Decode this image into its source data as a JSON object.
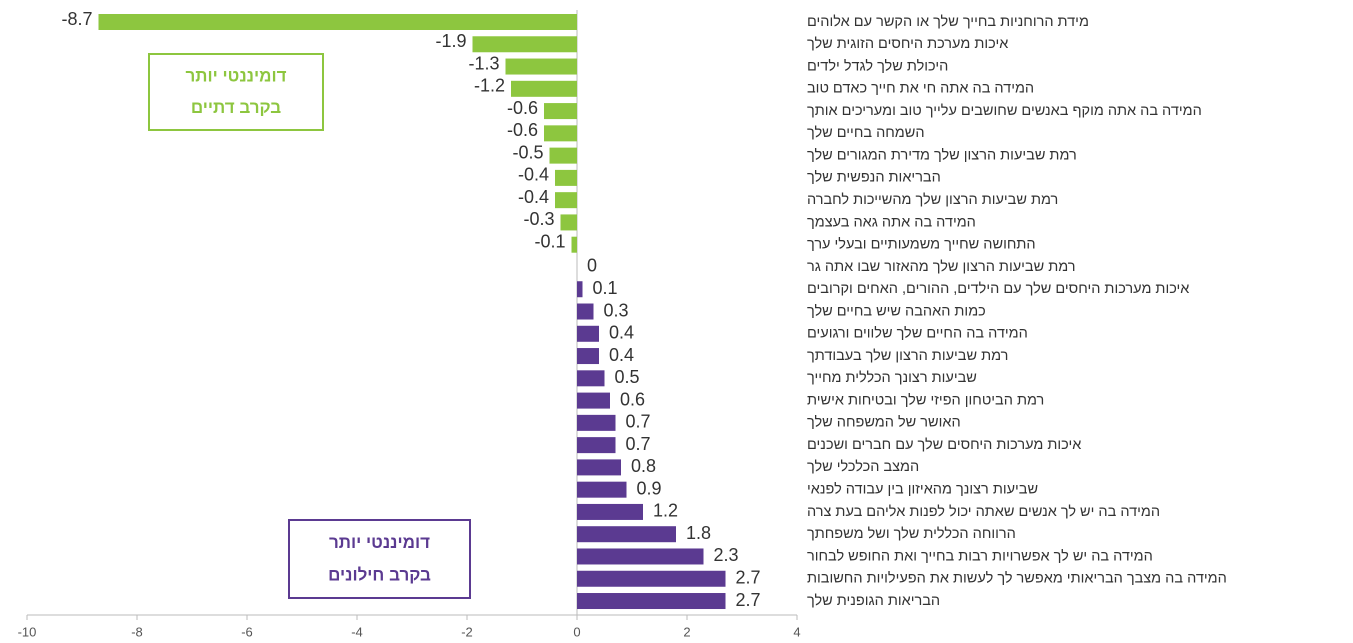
{
  "chart_data": {
    "type": "hbar",
    "categories": [
      "מידת הרוחניות בחייך שלך או הקשר עם אלוהים",
      "איכות מערכת היחסים הזוגית שלך",
      "היכולת שלך לגדל ילדים",
      "המידה בה אתה חי את חייך כאדם טוב",
      "המידה בה אתה מוקף באנשים שחושבים עלייך טוב ומעריכים אותך",
      "השמחה בחיים שלך",
      "רמת שביעות הרצון שלך מדירת המגורים שלך",
      "הבריאות הנפשית שלך",
      "רמת שביעות הרצון שלך מהשייכות לחברה",
      "המידה בה אתה גאה בעצמך",
      "התחושה שחייך משמעותיים ובעלי ערך",
      "רמת שביעות הרצון שלך מהאזור שבו אתה גר",
      "איכות מערכות היחסים שלך עם הילדים, ההורים, האחים וקרובים",
      "כמות האהבה שיש בחיים שלך",
      "המידה בה החיים שלך שלווים ורגועים",
      "רמת שביעות הרצון שלך בעבודתך",
      "שביעות רצונך הכללית מחייך",
      "רמת הביטחון הפיזי שלך ובטיחות אישית",
      "האושר של המשפחה שלך",
      "איכות מערכות היחסים שלך עם חברים ושכנים",
      "המצב הכלכלי שלך",
      "שביעות רצונך מהאיזון בין עבודה לפנאי",
      "המידה בה יש לך אנשים שאתה יכול לפנות אליהם בעת צרה",
      "הרווחה הכללית שלך ושל משפחתך",
      "המידה בה יש לך אפשרויות רבות בחייך ואת החופש לבחור",
      "המידה בה מצבך הבריאותי מאפשר לך לעשות את הפעילויות החשובות",
      "הבריאות הגופנית שלך"
    ],
    "values": [
      -8.7,
      -1.9,
      -1.3,
      -1.2,
      -0.6,
      -0.6,
      -0.5,
      -0.4,
      -0.4,
      -0.3,
      -0.1,
      0,
      0.1,
      0.3,
      0.4,
      0.4,
      0.5,
      0.6,
      0.7,
      0.7,
      0.8,
      0.9,
      1.2,
      1.8,
      2.3,
      2.7,
      2.7
    ],
    "color_negative": "#8dc63f",
    "color_positive": "#5b3a91",
    "xlim": [
      -10,
      4
    ],
    "xticks": [
      -10,
      -8,
      -6,
      -4,
      -2,
      0,
      2,
      4
    ],
    "annotations": [
      {
        "lines": [
          "דומיננטי יותר",
          "בקרב דתיים"
        ],
        "color": "#8dc63f"
      },
      {
        "lines": [
          "דומיננטי יותר",
          "בקרב חילונים"
        ],
        "color": "#5b3a91"
      }
    ]
  }
}
